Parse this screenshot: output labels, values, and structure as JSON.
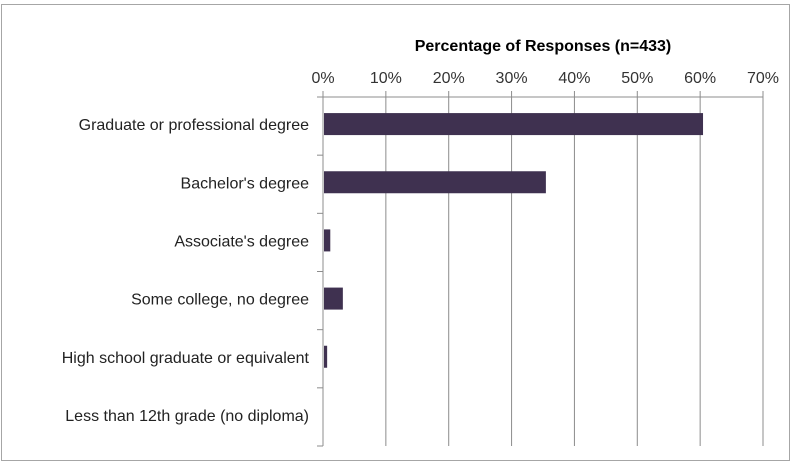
{
  "chart_data": {
    "type": "bar",
    "orientation": "horizontal",
    "title": "Percentage of Responses (n=433)",
    "xlabel": "",
    "ylabel": "",
    "categories": [
      "Graduate or professional degree",
      "Bachelor's degree",
      "Associate's degree",
      "Some college, no degree",
      "High school graduate or equivalent",
      "Less than 12th grade (no diploma)"
    ],
    "values": [
      60.3,
      35.3,
      1.0,
      3.0,
      0.5,
      0.0
    ],
    "xlim": [
      0,
      70
    ],
    "x_ticks": [
      "0%",
      "10%",
      "20%",
      "30%",
      "40%",
      "50%",
      "60%",
      "70%"
    ],
    "x_axis_position": "top",
    "grid": true,
    "legend": "none",
    "bar_color": "#3f3150"
  }
}
